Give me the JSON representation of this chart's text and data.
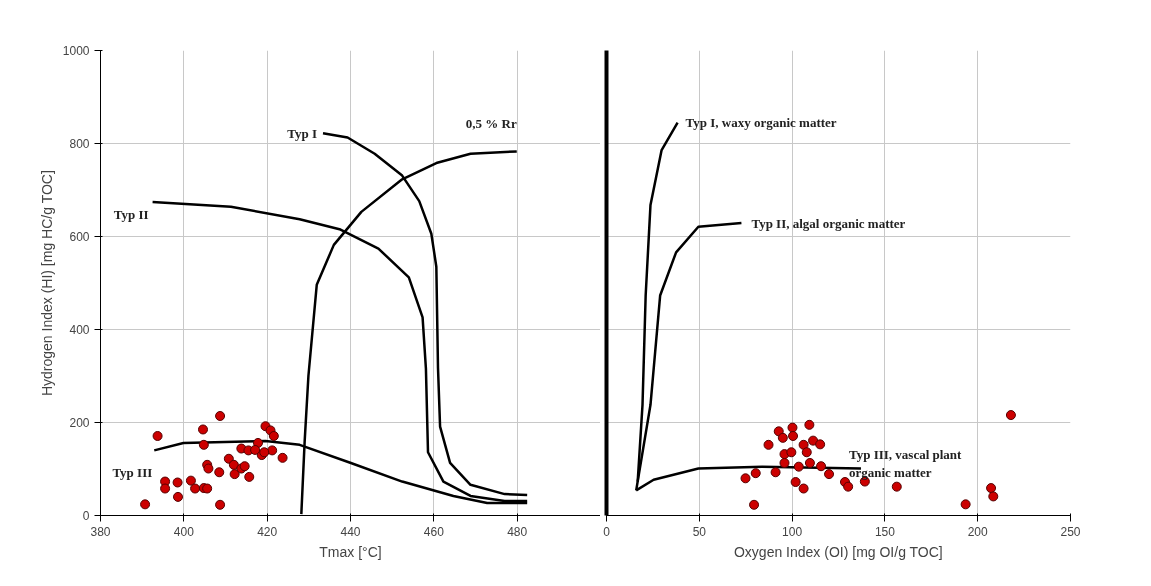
{
  "chart_data": [
    {
      "type": "line",
      "xlabel": "Tmax [°C]",
      "ylabel": "Hydrogen Index (HI) [mg HC/g TOC]",
      "xlim": [
        380,
        500
      ],
      "xticks": [
        380,
        400,
        420,
        440,
        460,
        480
      ],
      "ylim": [
        0,
        1000
      ],
      "yticks": [
        0,
        200,
        400,
        600,
        800,
        1000
      ],
      "grid": true,
      "line_style": "solid",
      "series": [
        {
          "name": "Typ I",
          "color": "#000000",
          "x": [
            433.4,
            439.3,
            445.8,
            452.4,
            456.5,
            459.4,
            460.6,
            461,
            461.5,
            463.9,
            468.8,
            477,
            482.4
          ],
          "values": [
            822,
            813,
            778,
            731,
            676,
            606,
            535,
            317,
            191,
            113,
            66,
            46,
            44
          ]
        },
        {
          "name": "Typ II",
          "color": "#000000",
          "x": [
            392.5,
            411.3,
            427.8,
            437.6,
            446.7,
            454,
            457.3,
            458.1,
            458.6,
            462.3,
            468.8,
            477,
            482.4
          ],
          "values": [
            674,
            664,
            637,
            615,
            574,
            512,
            426,
            316,
            136,
            73,
            42,
            31,
            31
          ]
        },
        {
          "name": "Typ III",
          "color": "#000000",
          "x": [
            392.9,
            399.9,
            419.6,
            427.8,
            440.1,
            452.4,
            464.7,
            472.8,
            482.4
          ],
          "values": [
            140,
            156,
            160,
            152,
            113,
            73,
            42,
            27,
            27
          ]
        },
        {
          "name": "0,5 % Rr",
          "color": "#000000",
          "x": [
            428.2,
            429,
            429.9,
            431.9,
            436,
            442.6,
            452.4,
            460.6,
            468.8,
            479.9
          ],
          "values": [
            3,
            160,
            300,
            496,
            582,
            653,
            723,
            758,
            778,
            783
          ]
        },
        {
          "type": "scatter",
          "color": "#cc0000",
          "marker": "circle",
          "x": [
            390.7,
            393.7,
            395.5,
            395.5,
            398.5,
            398.6,
            401.7,
            402.7,
            404.8,
            405.6,
            404.6,
            404.8,
            405.6,
            405.9,
            408.7,
            408.7,
            408.5,
            410.8,
            412,
            412.2,
            413.8,
            414.6,
            415.7,
            413.8,
            415.5,
            417.8,
            418.7,
            419.6,
            420.8,
            421.6,
            421.2,
            423.7,
            419.3,
            417.1
          ],
          "values": [
            24,
            171,
            73,
            58,
            71,
            40,
            75,
            58,
            59,
            58,
            185,
            152,
            109,
            101,
            214,
            23,
            93,
            122,
            109,
            89,
            101,
            106,
            83,
            144,
            140,
            156,
            130,
            192,
            183,
            171,
            140,
            124,
            136,
            141
          ]
        }
      ]
    },
    {
      "type": "line",
      "xlabel": "Oxygen Index (OI) [mg OI/g TOC]",
      "xlim": [
        0,
        250
      ],
      "xticks": [
        0,
        50,
        100,
        150,
        200,
        250
      ],
      "ylim": [
        0,
        1000
      ],
      "yticks": [
        0,
        200,
        400,
        600,
        800,
        1000
      ],
      "tick_labels": "x",
      "grid": true,
      "line_style": "solid",
      "series": [
        {
          "name": "Typ I, waxy organic matter",
          "color": "#000000",
          "x": [
            16.8,
            19.4,
            21.1,
            23.7,
            29.7,
            38.3
          ],
          "values": [
            73,
            238,
            473,
            668,
            786,
            845
          ]
        },
        {
          "name": "Typ II, algal organic matter",
          "color": "#000000",
          "x": [
            16,
            23.7,
            28.9,
            37.5,
            49.5,
            72.7
          ],
          "values": [
            54,
            238,
            473,
            566,
            621,
            629
          ]
        },
        {
          "name": "Typ III, vascal plant\norganic matter",
          "color": "#000000",
          "x": [
            16,
            25.4,
            49.5,
            83.9,
            137.1
          ],
          "values": [
            54,
            77,
            101,
            105,
            101
          ]
        },
        {
          "type": "scatter",
          "color": "#cc0000",
          "marker": "circle",
          "x": [
            79.5,
            74.9,
            80.4,
            91.1,
            87.3,
            92.8,
            95,
            100.2,
            100.5,
            109.3,
            111.3,
            115.1,
            106.2,
            107.9,
            95.9,
            99.6,
            95.9,
            103.6,
            109.6,
            115.6,
            119.9,
            101.9,
            106.2,
            128.5,
            130.2,
            139.2,
            156.4,
            193.5,
            207.2,
            208.4,
            217.9
          ],
          "values": [
            23,
            80,
            91,
            93,
            152,
            181,
            167,
            189,
            171,
            195,
            161,
            153,
            152,
            136,
            132,
            136,
            113,
            105,
            113,
            106,
            89,
            72,
            58,
            72,
            62,
            73,
            62,
            24,
            59,
            41,
            216
          ]
        }
      ]
    }
  ]
}
